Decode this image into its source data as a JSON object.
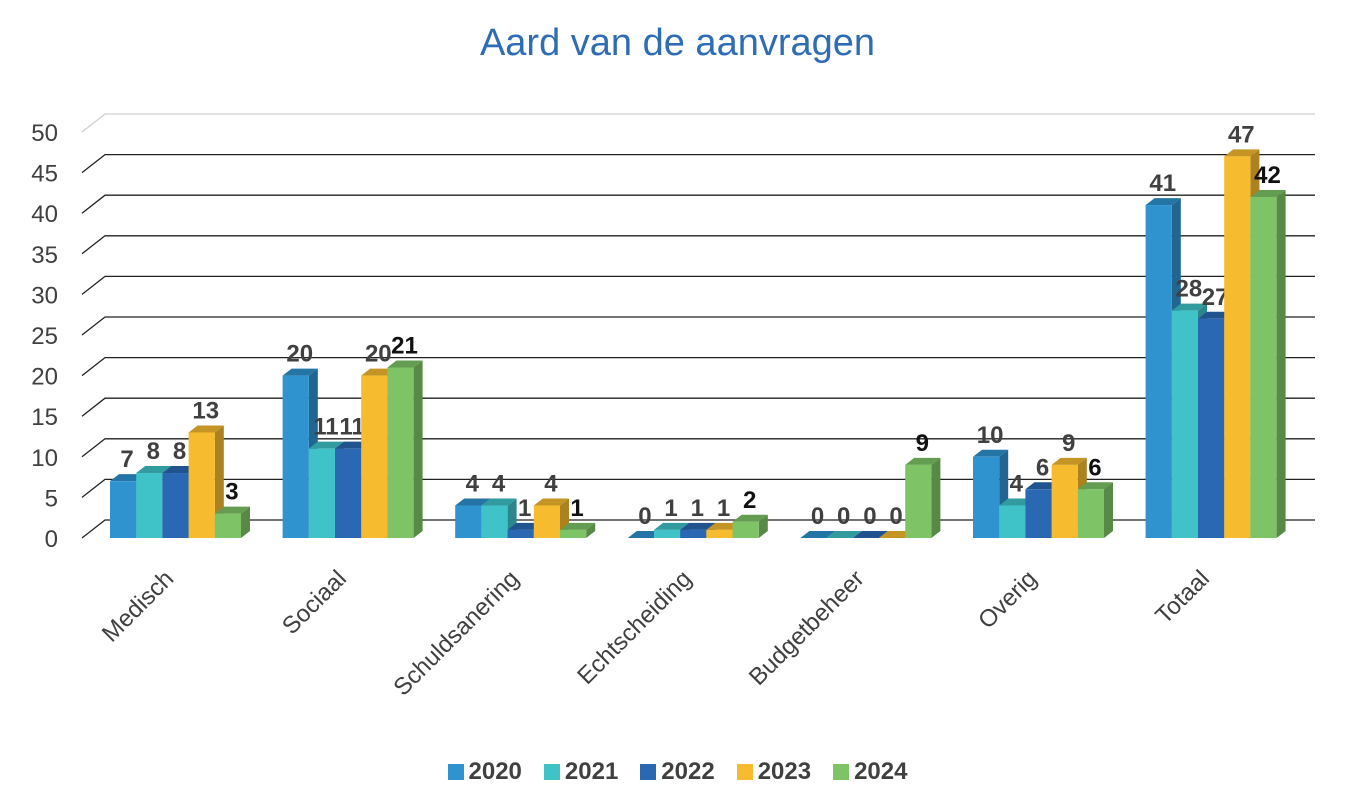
{
  "chart_data": {
    "type": "bar",
    "title": "Aard van de aanvragen",
    "categories": [
      "Medisch",
      "Sociaal",
      "Schuldsanering",
      "Echtscheiding",
      "Budgetbeheer",
      "Overig",
      "Totaal"
    ],
    "series": [
      {
        "name": "2020",
        "color": "#2e93cf",
        "values": [
          7,
          20,
          4,
          0,
          0,
          10,
          41
        ]
      },
      {
        "name": "2021",
        "color": "#3fc2c8",
        "values": [
          8,
          11,
          4,
          1,
          0,
          4,
          28
        ]
      },
      {
        "name": "2022",
        "color": "#2a68b3",
        "values": [
          8,
          11,
          1,
          1,
          0,
          6,
          27
        ]
      },
      {
        "name": "2023",
        "color": "#f6bb2f",
        "values": [
          13,
          20,
          4,
          1,
          0,
          9,
          47
        ]
      },
      {
        "name": "2024",
        "color": "#7ec466",
        "values": [
          3,
          21,
          1,
          2,
          9,
          6,
          42
        ]
      }
    ],
    "ylim": [
      0,
      50
    ],
    "yticks": [
      0,
      5,
      10,
      15,
      20,
      25,
      30,
      35,
      40,
      45,
      50
    ],
    "grid": true,
    "legend_position": "bottom",
    "style": "3d-clustered-column"
  }
}
